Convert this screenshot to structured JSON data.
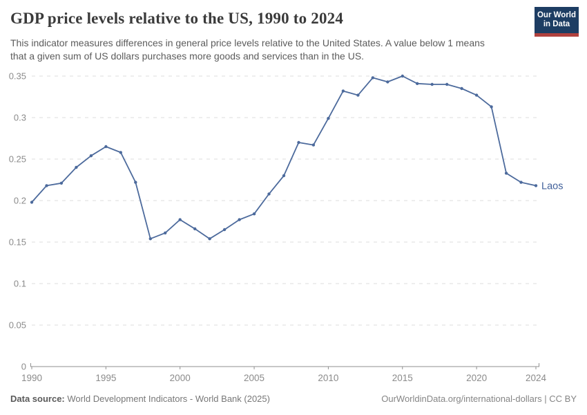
{
  "header": {
    "title": "GDP price levels relative to the US, 1990 to 2024",
    "subtitle": "This indicator measures differences in general price levels relative to the United States. A value below 1 means\nthat a given sum of US dollars purchases more goods and services than in the US."
  },
  "logo": {
    "line1": "Our World",
    "line2": "in Data"
  },
  "chart_data": {
    "type": "line",
    "title": "GDP price levels relative to the US, 1990 to 2024",
    "xlabel": "",
    "ylabel": "",
    "x": [
      1990,
      1991,
      1992,
      1993,
      1994,
      1995,
      1996,
      1997,
      1998,
      1999,
      2000,
      2001,
      2002,
      2003,
      2004,
      2005,
      2006,
      2007,
      2008,
      2009,
      2010,
      2011,
      2012,
      2013,
      2014,
      2015,
      2016,
      2017,
      2018,
      2019,
      2020,
      2021,
      2022,
      2023,
      2024
    ],
    "series": [
      {
        "name": "Laos",
        "values": [
          0.198,
          0.218,
          0.221,
          0.24,
          0.254,
          0.265,
          0.258,
          0.222,
          0.154,
          0.161,
          0.177,
          0.166,
          0.154,
          0.165,
          0.177,
          0.184,
          0.208,
          0.23,
          0.27,
          0.267,
          0.299,
          0.332,
          0.327,
          0.348,
          0.343,
          0.35,
          0.341,
          0.34,
          0.34,
          0.335,
          0.327,
          0.313,
          0.233,
          0.222,
          0.218
        ]
      }
    ],
    "end_label": "Laos",
    "x_ticks": [
      "1990",
      "1995",
      "2000",
      "2005",
      "2010",
      "2015",
      "2020",
      "2024"
    ],
    "y_ticks": [
      "0",
      "0.05",
      "0.1",
      "0.15",
      "0.2",
      "0.25",
      "0.3",
      "0.35"
    ],
    "xlim": [
      1990,
      2024
    ],
    "ylim": [
      0,
      0.35
    ],
    "grid": true,
    "legend_position": "end-of-line"
  },
  "colors": {
    "line": "#4c6a9c",
    "end_label": "#41609a",
    "grid": "#dcdcdc",
    "axis": "#8f8f8f",
    "tick_label": "#8b8b8b",
    "logo_bg": "#1d3d63",
    "logo_stripe": "#b0413e"
  },
  "footer": {
    "source_label": "Data source:",
    "source_text": "World Development Indicators - World Bank (2025)",
    "attribution": "OurWorldinData.org/international-dollars | CC BY"
  }
}
